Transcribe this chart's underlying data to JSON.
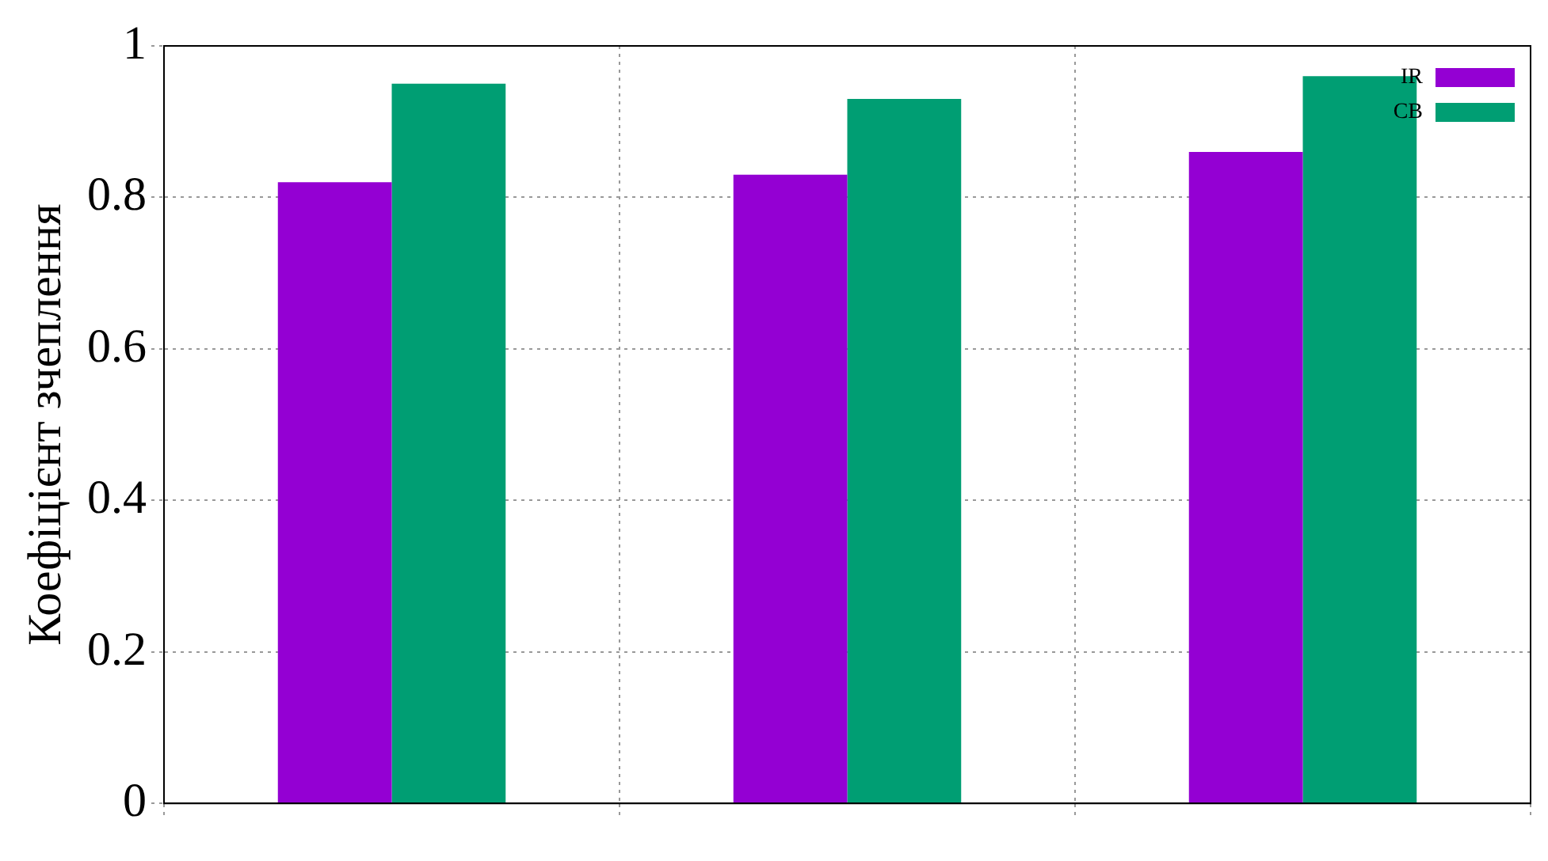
{
  "chart_data": {
    "type": "bar",
    "ylabel": "Коефіцієнт зчеплення",
    "categories": [
      null,
      null,
      null
    ],
    "series": [
      {
        "name": "IR",
        "color": "#9400d3",
        "values": [
          0.82,
          0.83,
          0.86
        ]
      },
      {
        "name": "CB",
        "color": "#009e73",
        "values": [
          0.95,
          0.93,
          0.96
        ]
      }
    ],
    "ylim": [
      0,
      1
    ],
    "yticks": [
      0,
      0.2,
      0.4,
      0.6,
      0.8,
      1
    ],
    "grid": true,
    "legend": "top right"
  }
}
